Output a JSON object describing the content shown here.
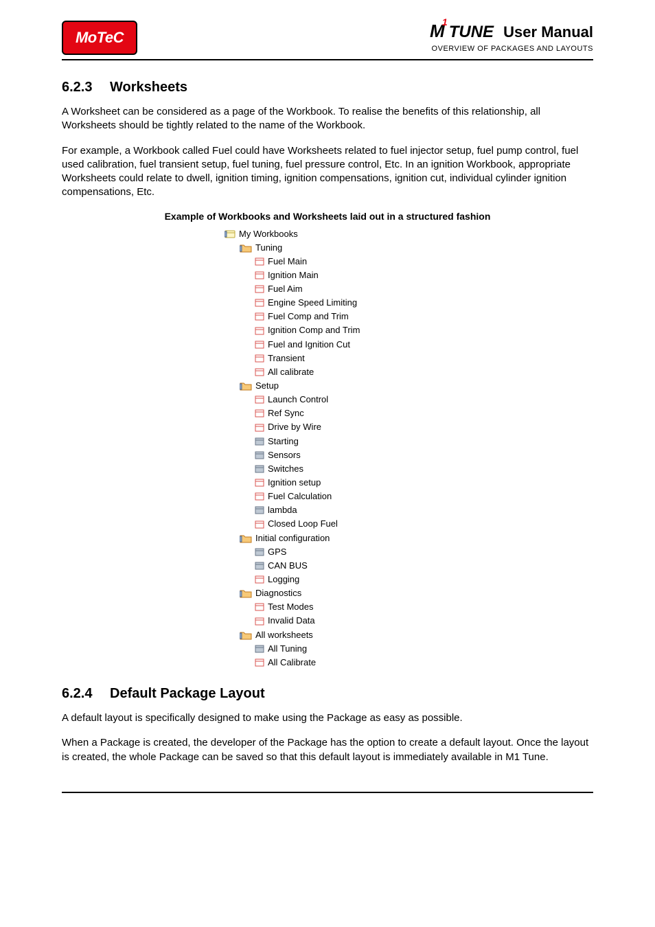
{
  "header": {
    "logo_text": "MoTeC",
    "brand_m": "M",
    "brand_tune": "TUNE",
    "title_rest": "User Manual",
    "subtitle": "OVERVIEW OF PACKAGES AND LAYOUTS"
  },
  "section1": {
    "number": "6.2.3",
    "title": "Worksheets",
    "para1": "A Worksheet can be considered as a page of the Workbook. To realise the benefits of this relationship, all Worksheets should be tightly related to the name of the Workbook.",
    "para2": "For example, a Workbook called Fuel could have Worksheets related to fuel injector setup, fuel pump control, fuel used calibration, fuel transient setup, fuel tuning, fuel pressure control, Etc. In an ignition Workbook, appropriate Worksheets could relate to dwell, ignition timing, ignition compensations, ignition cut, individual cylinder ignition compensations, Etc.",
    "caption": "Example of Workbooks and Worksheets laid out in a structured fashion"
  },
  "tree": {
    "root": "My Workbooks",
    "workbooks": [
      {
        "label": "Tuning",
        "sheets": [
          "Fuel Main",
          "Ignition Main",
          "Fuel Aim",
          "Engine Speed Limiting",
          "Fuel Comp and Trim",
          "Ignition Comp and Trim",
          "Fuel and Ignition Cut",
          "Transient",
          "All calibrate"
        ]
      },
      {
        "label": "Setup",
        "sheets": [
          "Launch Control",
          "Ref Sync",
          "Drive by Wire",
          "Starting",
          "Sensors",
          "Switches",
          "Ignition setup",
          "Fuel Calculation",
          "lambda",
          "Closed Loop Fuel"
        ]
      },
      {
        "label": "Initial configuration",
        "sheets": [
          "GPS",
          "CAN BUS",
          "Logging"
        ]
      },
      {
        "label": "Diagnostics",
        "sheets": [
          "Test Modes",
          "Invalid Data"
        ]
      },
      {
        "label": "All worksheets",
        "sheets": [
          "All Tuning",
          "All Calibrate"
        ]
      }
    ],
    "colors": {
      "root_icon_fill": "#fef7c8",
      "root_icon_stroke": "#bfa93a",
      "workbook_icon_fill": "#f7c978",
      "workbook_icon_stroke": "#c07a1f",
      "sheet_icon_fill": "#ffffff",
      "sheet_icon_stroke": "#d9534f",
      "sheet_icon_alt_fill": "#bfc9d4",
      "sheet_icon_alt_stroke": "#6a7687"
    },
    "grey_sheets": [
      "Starting",
      "Sensors",
      "Switches",
      "lambda",
      "GPS",
      "CAN BUS",
      "All Tuning"
    ]
  },
  "section2": {
    "number": "6.2.4",
    "title": "Default Package Layout",
    "para1": "A default layout is specifically designed to make using the Package as easy as possible.",
    "para2": "When a Package is created, the developer of the Package has the option to create a default layout. Once the layout is created, the whole Package can be saved so that this default layout is immediately available in M1 Tune."
  }
}
